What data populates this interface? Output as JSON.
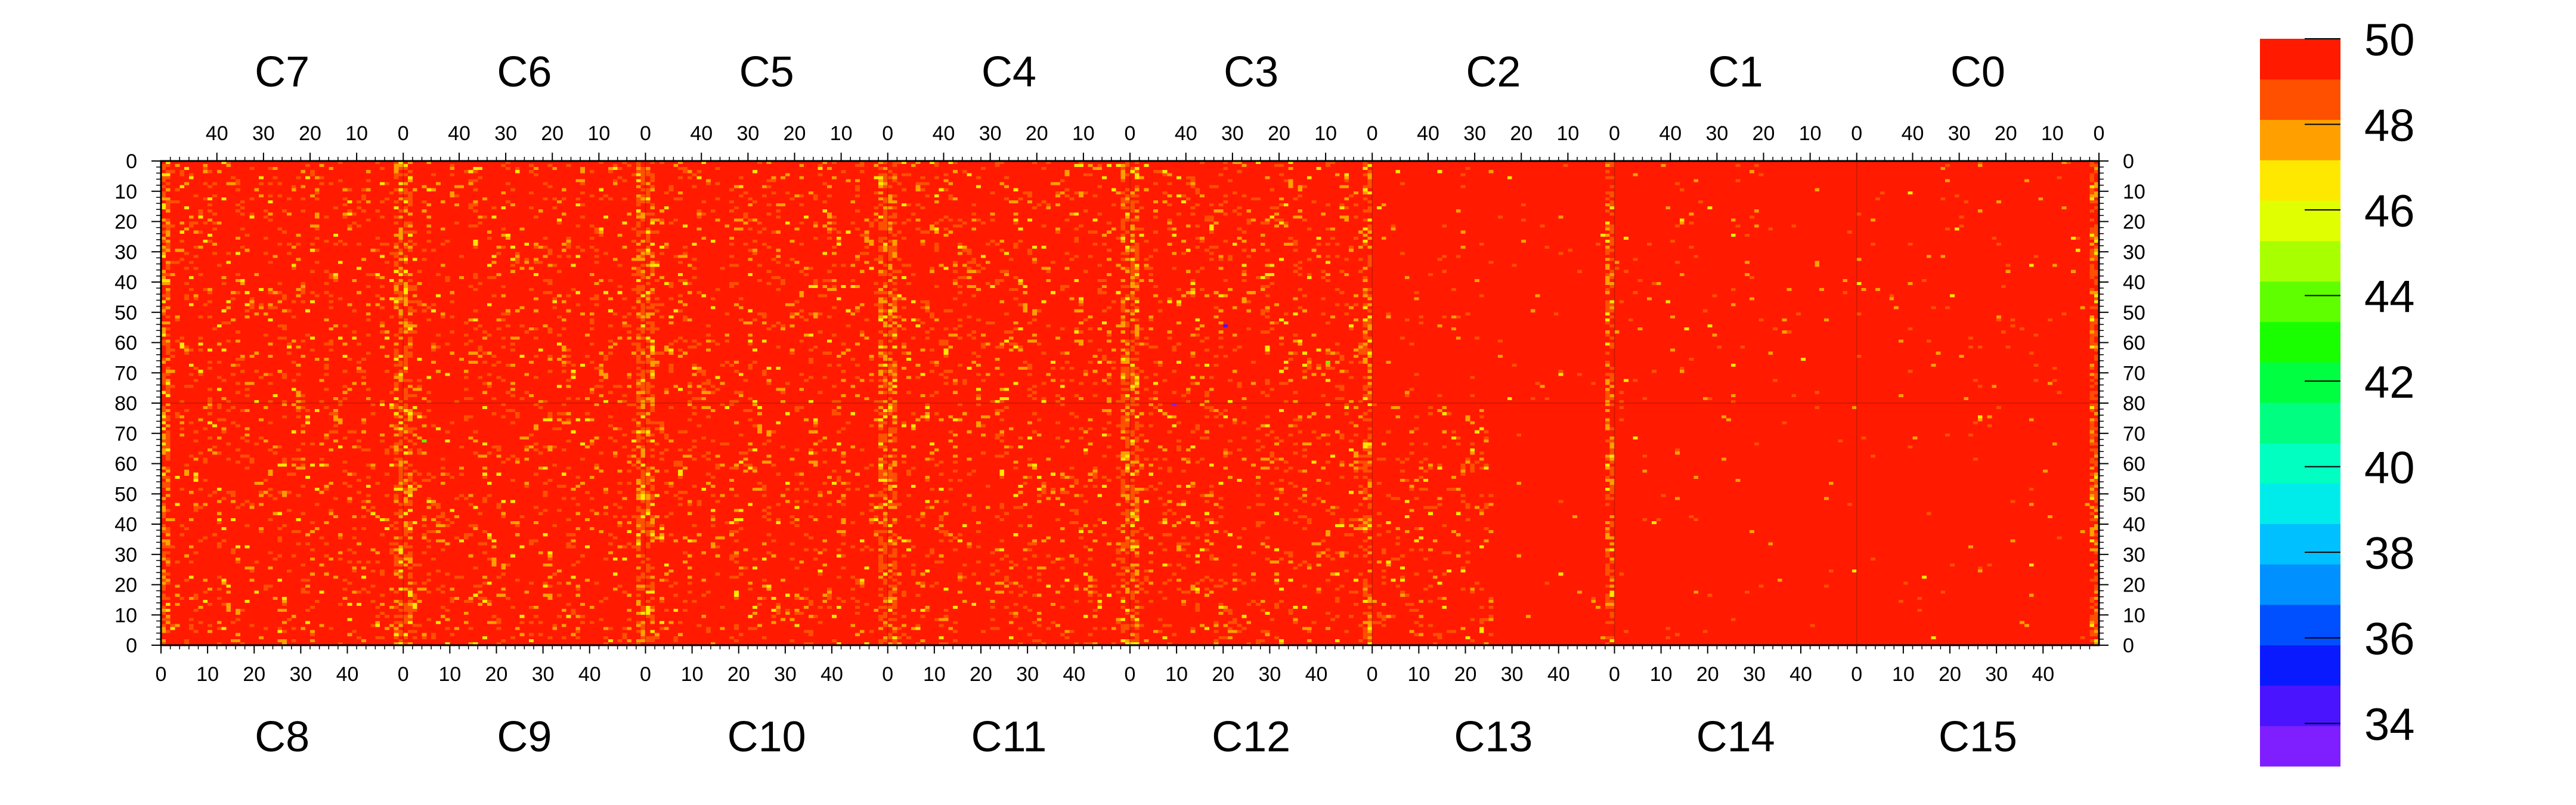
{
  "chart_data": {
    "type": "heatmap",
    "title": "",
    "xlabel": "",
    "ylabel": "",
    "top_chip_labels": [
      "C7",
      "C6",
      "C5",
      "C4",
      "C3",
      "C2",
      "C1",
      "C0"
    ],
    "bottom_chip_labels": [
      "C8",
      "C9",
      "C10",
      "C11",
      "C12",
      "C13",
      "C14",
      "C15"
    ],
    "top_x_ticks": [
      "40",
      "30",
      "20",
      "10",
      "0"
    ],
    "top_x_tick_values": [
      40,
      30,
      20,
      10,
      0
    ],
    "bottom_x_ticks": [
      "0",
      "10",
      "20",
      "30",
      "40"
    ],
    "bottom_x_tick_values": [
      0,
      10,
      20,
      30,
      40
    ],
    "x_range_per_chip": [
      0,
      52
    ],
    "y_ticks_upper": [
      "0",
      "10",
      "20",
      "30",
      "40",
      "50",
      "60",
      "70",
      "80"
    ],
    "y_ticks_lower": [
      "70",
      "60",
      "50",
      "40",
      "30",
      "20",
      "10",
      "0"
    ],
    "y_range_per_half": [
      0,
      80
    ],
    "color_scale": {
      "min": 33,
      "max": 50,
      "tick_labels": [
        "50",
        "48",
        "46",
        "44",
        "42",
        "40",
        "38",
        "36",
        "34"
      ],
      "tick_values": [
        50,
        48,
        46,
        44,
        42,
        40,
        38,
        36,
        34
      ],
      "palette": [
        "#7f1fff",
        "#4a14ff",
        "#0a1aff",
        "#0050ff",
        "#0090ff",
        "#00c0ff",
        "#00ecea",
        "#00ffc0",
        "#00ff80",
        "#00ff40",
        "#1aff00",
        "#60ff00",
        "#a8ff00",
        "#e0ff00",
        "#ffe800",
        "#ffa000",
        "#ff5000",
        "#ff1a00"
      ]
    },
    "dominant_value": 50,
    "hot_columns": [
      {
        "chip": "C7",
        "column": 0
      },
      {
        "chip": "C6",
        "column": 0
      },
      {
        "chip": "C5",
        "column": 0
      },
      {
        "chip": "C4",
        "column": 0
      },
      {
        "chip": "C3",
        "column": 0
      },
      {
        "chip": "C2",
        "column": 0
      },
      {
        "chip": "C0",
        "column": 0
      }
    ],
    "outlier_pixels": [
      {
        "chip": "C3",
        "column": 31,
        "row": 54,
        "value": 34
      },
      {
        "chip": "C3",
        "column": 19,
        "row": 52,
        "value": 46
      },
      {
        "chip": "C3",
        "column": 9,
        "row": 66,
        "value": 44
      },
      {
        "chip": "C12",
        "column": 9,
        "row": 79,
        "value": 33
      },
      {
        "chip": "C9",
        "column": 4,
        "row": 67,
        "value": 44
      },
      {
        "chip": "C1",
        "column": 26,
        "row": 24,
        "value": 46
      }
    ],
    "grid": false,
    "legend": "colorbar right"
  }
}
